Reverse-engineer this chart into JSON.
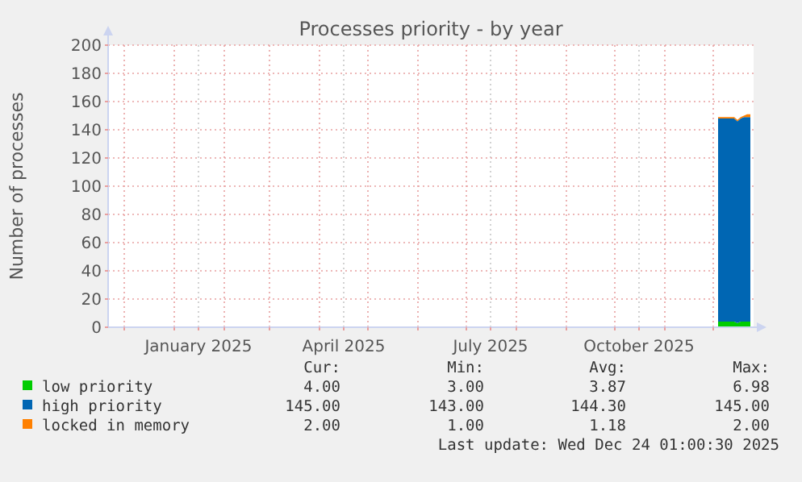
{
  "chart_data": {
    "type": "area",
    "stacked": true,
    "title": "Processes priority - by year",
    "ylabel": "Number of processes",
    "x": [
      "2025-12-04",
      "2025-12-06",
      "2025-12-08",
      "2025-12-10",
      "2025-12-12",
      "2025-12-14",
      "2025-12-16",
      "2025-12-18",
      "2025-12-20",
      "2025-12-22",
      "2025-12-24"
    ],
    "series": [
      {
        "name": "low priority",
        "color": "#00cc00",
        "values": [
          4,
          4,
          4,
          4,
          4,
          4,
          3,
          4,
          4,
          4,
          4
        ]
      },
      {
        "name": "high priority",
        "color": "#0066b3",
        "values": [
          144,
          144,
          144,
          144,
          144,
          144,
          143,
          144,
          145,
          145,
          145
        ]
      },
      {
        "name": "locked in memory",
        "color": "#ff8000",
        "values": [
          1,
          1,
          1,
          1,
          1,
          1,
          1,
          1,
          1,
          2,
          2
        ]
      }
    ],
    "xlim": [
      "2024-11-21",
      "2025-12-26"
    ],
    "xticks": [
      {
        "value": "2024-12-01",
        "label": null
      },
      {
        "value": "2025-01-01",
        "label": null
      },
      {
        "value": "2025-01-16",
        "label": "January 2025"
      },
      {
        "value": "2025-02-01",
        "label": null
      },
      {
        "value": "2025-03-01",
        "label": null
      },
      {
        "value": "2025-04-01",
        "label": null
      },
      {
        "value": "2025-04-16",
        "label": "April 2025"
      },
      {
        "value": "2025-05-01",
        "label": null
      },
      {
        "value": "2025-06-01",
        "label": null
      },
      {
        "value": "2025-07-01",
        "label": null
      },
      {
        "value": "2025-07-16",
        "label": "July 2025"
      },
      {
        "value": "2025-08-01",
        "label": null
      },
      {
        "value": "2025-09-01",
        "label": null
      },
      {
        "value": "2025-10-01",
        "label": null
      },
      {
        "value": "2025-10-16",
        "label": "October 2025"
      },
      {
        "value": "2025-11-01",
        "label": null
      },
      {
        "value": "2025-12-01",
        "label": null
      }
    ],
    "ylim": [
      0,
      200
    ],
    "yticks": [
      0,
      20,
      40,
      60,
      80,
      100,
      120,
      140,
      160,
      180,
      200
    ],
    "grid": true,
    "legend": "bottom",
    "annotations": [
      "Cur:",
      "Min:",
      "Avg:",
      "Max:",
      "4.00",
      "3.00",
      "3.87",
      "6.98",
      "145.00",
      "143.00",
      "144.30",
      "145.00",
      "2.00",
      "1.00",
      "1.18",
      "2.00",
      "Last update: Wed Dec 24 01:00:30 2025"
    ]
  }
}
